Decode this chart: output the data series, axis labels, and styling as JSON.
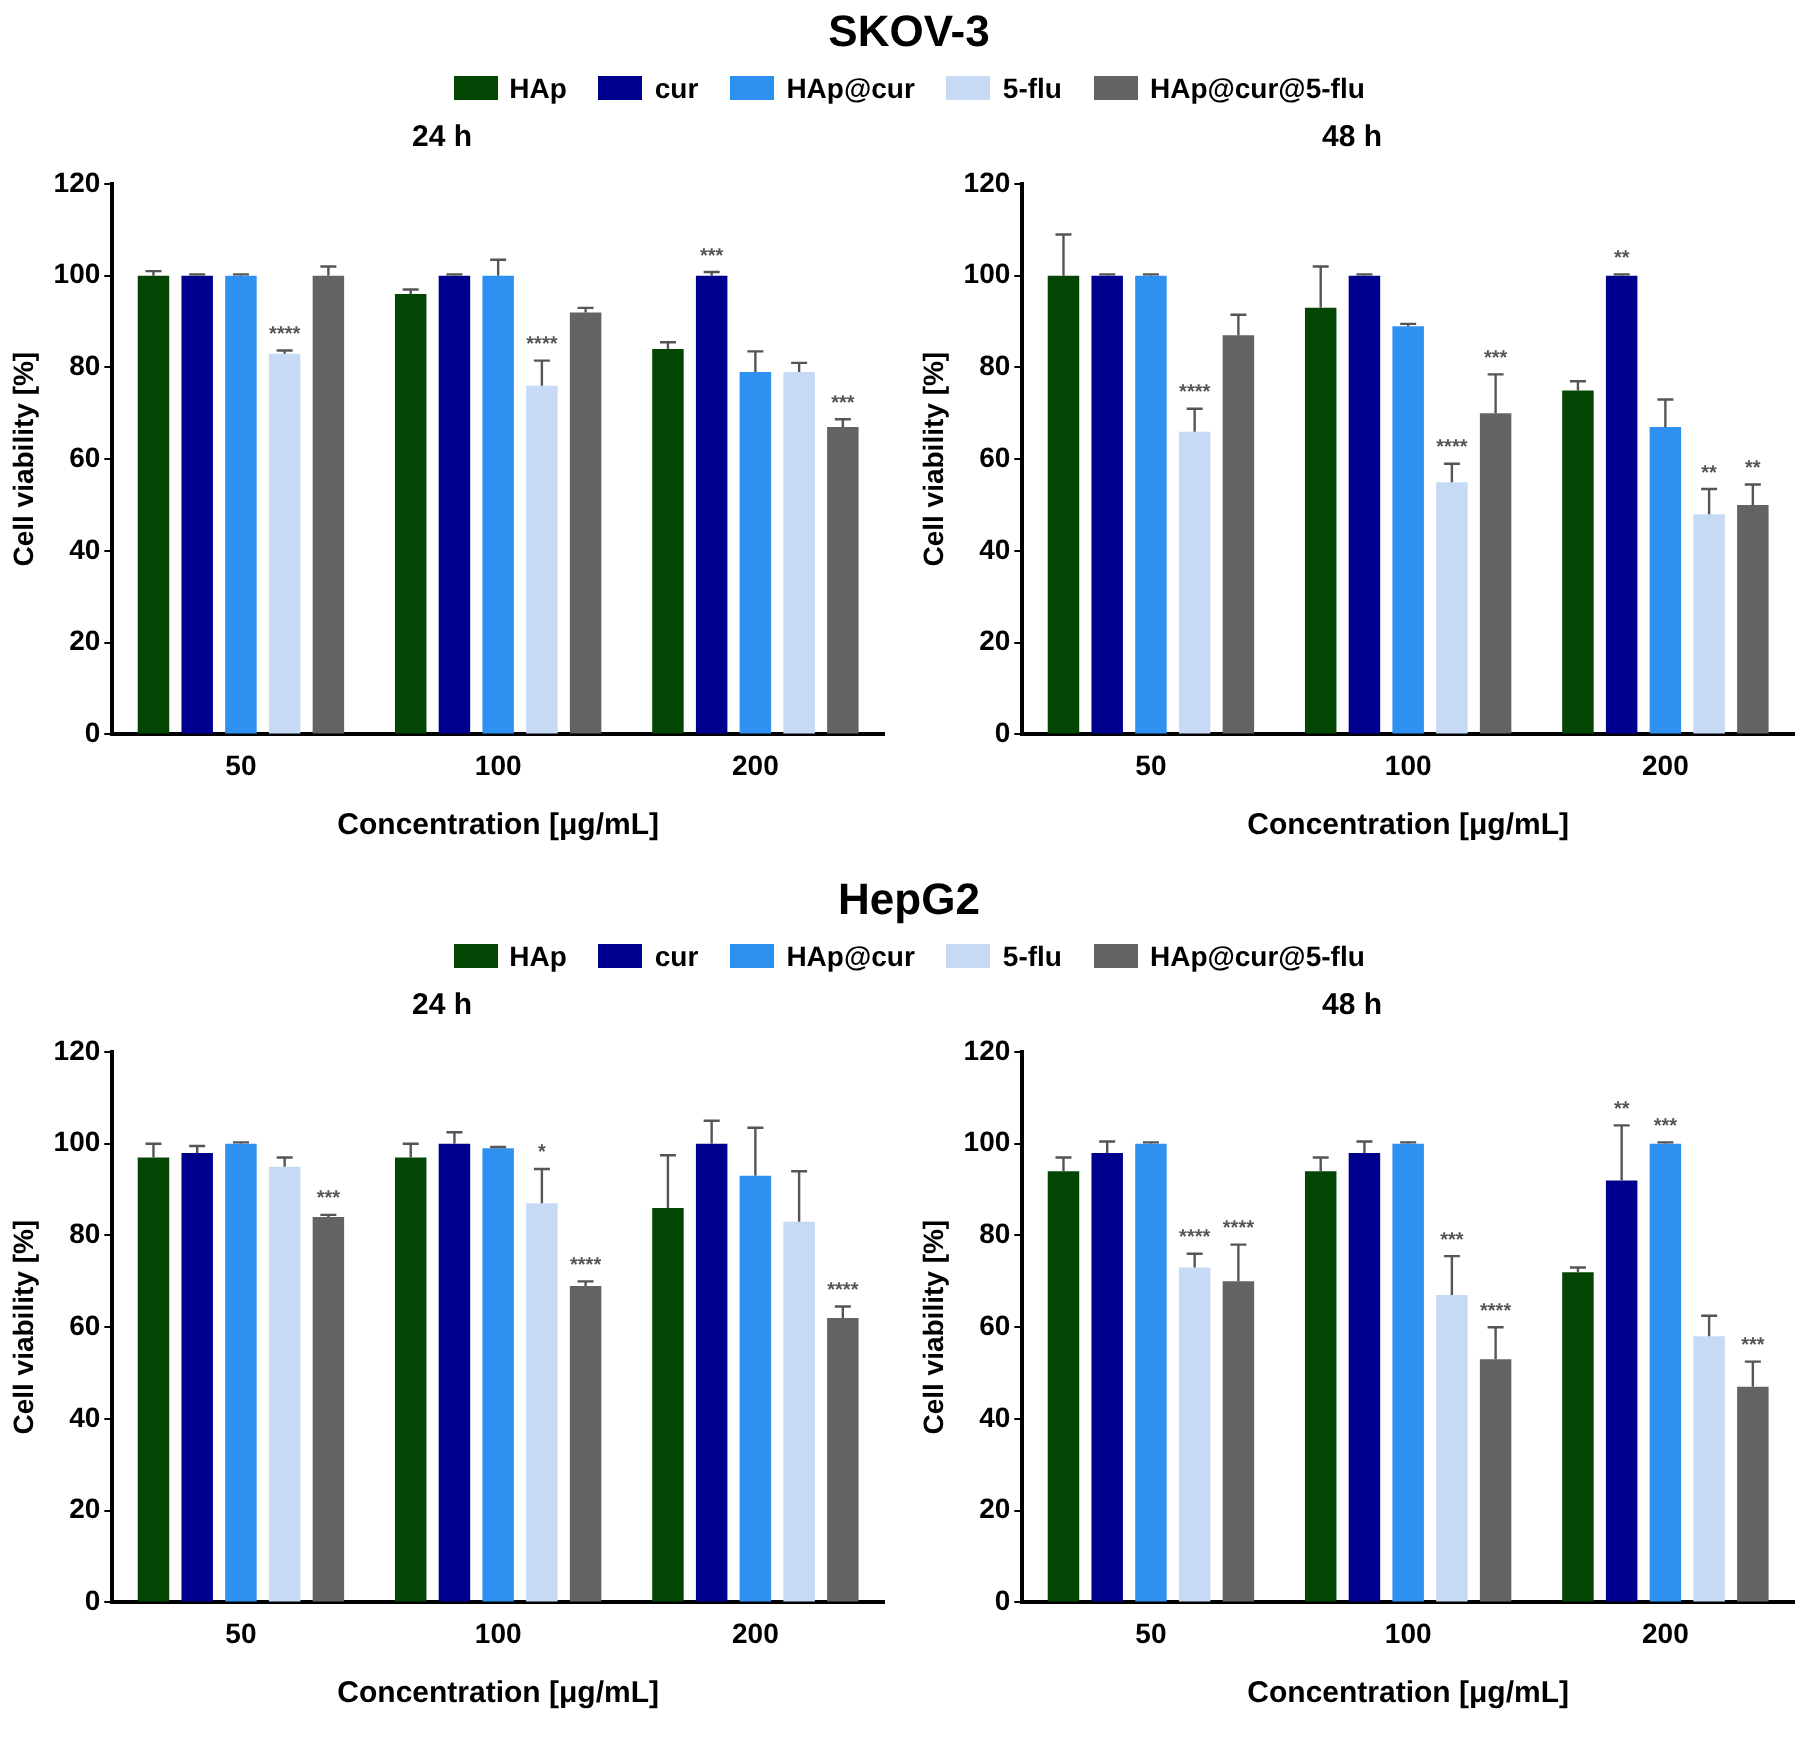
{
  "chart_data": [
    {
      "type": "bar",
      "title": "24 h",
      "annotations": [
        "SKOV-3"
      ],
      "legend": "top",
      "grid": false,
      "xlabel": "Concentration [μg/mL]",
      "ylabel": "Cell viability [%]",
      "categories": [
        "50",
        "100",
        "200"
      ],
      "ylim": [
        0,
        120
      ],
      "yticks": [
        0,
        20,
        40,
        60,
        80,
        100,
        120
      ],
      "series": [
        {
          "name": "HAp",
          "color": "#034503",
          "values": [
            100,
            96,
            84
          ],
          "errors": [
            [
              100,
              101
            ],
            [
              96,
              97
            ],
            [
              84,
              85.5
            ]
          ],
          "value_labels": [
            null,
            null,
            null
          ]
        },
        {
          "name": "cur",
          "color": "#00008f",
          "values": [
            100,
            100,
            100
          ],
          "errors": [
            [
              100,
              100.3
            ],
            [
              100,
              100.3
            ],
            [
              100,
              100.8
            ]
          ],
          "value_labels": [
            null,
            null,
            "***"
          ]
        },
        {
          "name": "HAp@cur",
          "color": "#2e90f0",
          "values": [
            100,
            100,
            79
          ],
          "errors": [
            [
              100,
              100.3
            ],
            [
              100,
              103.5
            ],
            [
              79,
              83.5
            ]
          ],
          "value_labels": [
            null,
            null,
            null
          ]
        },
        {
          "name": "5-flu",
          "color": "#c6daf6",
          "values": [
            83,
            76,
            79
          ],
          "errors": [
            [
              83,
              83.7
            ],
            [
              76,
              81.5
            ],
            [
              79,
              81
            ]
          ],
          "value_labels": [
            "****",
            "****",
            null
          ]
        },
        {
          "name": "HAp@cur@5-flu",
          "color": "#636363",
          "values": [
            100,
            92,
            67
          ],
          "errors": [
            [
              100,
              102
            ],
            [
              92,
              93
            ],
            [
              67,
              68.7
            ]
          ],
          "value_labels": [
            null,
            null,
            "***"
          ]
        }
      ]
    },
    {
      "type": "bar",
      "title": "48 h",
      "legend": false,
      "grid": false,
      "xlabel": "Concentration [μg/mL]",
      "ylabel": "Cell viability [%]",
      "categories": [
        "50",
        "100",
        "200"
      ],
      "ylim": [
        0,
        120
      ],
      "yticks": [
        0,
        20,
        40,
        60,
        80,
        100,
        120
      ],
      "series": [
        {
          "color": "#034503",
          "values": [
            100,
            93,
            75
          ],
          "errors": [
            [
              100,
              109
            ],
            [
              93,
              102
            ],
            [
              75,
              77
            ]
          ],
          "value_labels": [
            null,
            null,
            null
          ]
        },
        {
          "color": "#00008f",
          "values": [
            100,
            100,
            100
          ],
          "errors": [
            [
              100,
              100.3
            ],
            [
              100,
              100.3
            ],
            [
              100,
              100.3
            ]
          ],
          "value_labels": [
            null,
            null,
            "**"
          ]
        },
        {
          "color": "#2e90f0",
          "values": [
            100,
            89,
            67
          ],
          "errors": [
            [
              100,
              100.3
            ],
            [
              89,
              89.5
            ],
            [
              67,
              73
            ]
          ],
          "value_labels": [
            null,
            null,
            null
          ]
        },
        {
          "color": "#c6daf6",
          "values": [
            66,
            55,
            48
          ],
          "errors": [
            [
              66,
              71
            ],
            [
              55,
              59
            ],
            [
              48,
              53.5
            ]
          ],
          "value_labels": [
            "****",
            "****",
            "**"
          ]
        },
        {
          "color": "#636363",
          "values": [
            87,
            70,
            50
          ],
          "errors": [
            [
              87,
              91.5
            ],
            [
              70,
              78.5
            ],
            [
              50,
              54.5
            ]
          ],
          "value_labels": [
            null,
            "***",
            "**"
          ]
        }
      ]
    },
    {
      "type": "bar",
      "title": "24 h",
      "annotations": [
        "HepG2"
      ],
      "legend": "top",
      "grid": false,
      "xlabel": "Concentration [μg/mL]",
      "ylabel": "Cell viability [%]",
      "categories": [
        "50",
        "100",
        "200"
      ],
      "ylim": [
        0,
        120
      ],
      "yticks": [
        0,
        20,
        40,
        60,
        80,
        100,
        120
      ],
      "series": [
        {
          "name": "HAp",
          "color": "#034503",
          "values": [
            97,
            97,
            86
          ],
          "errors": [
            [
              97,
              100
            ],
            [
              97,
              100
            ],
            [
              86,
              97.5
            ]
          ],
          "value_labels": [
            null,
            null,
            null
          ]
        },
        {
          "name": "cur",
          "color": "#00008f",
          "values": [
            98,
            100,
            100
          ],
          "errors": [
            [
              98,
              99.5
            ],
            [
              100,
              102.5
            ],
            [
              100,
              105
            ]
          ],
          "value_labels": [
            null,
            null,
            null
          ]
        },
        {
          "name": "HAp@cur",
          "color": "#2e90f0",
          "values": [
            100,
            99,
            93
          ],
          "errors": [
            [
              100,
              100.3
            ],
            [
              99,
              99.3
            ],
            [
              93,
              103.5
            ]
          ],
          "value_labels": [
            null,
            null,
            null
          ]
        },
        {
          "name": "5-flu",
          "color": "#c6daf6",
          "values": [
            95,
            87,
            83
          ],
          "errors": [
            [
              95,
              97
            ],
            [
              87,
              94.5
            ],
            [
              83,
              94
            ]
          ],
          "value_labels": [
            null,
            "*",
            null
          ]
        },
        {
          "name": "HAp@cur@5-flu",
          "color": "#636363",
          "values": [
            84,
            69,
            62
          ],
          "errors": [
            [
              84,
              84.5
            ],
            [
              69,
              70
            ],
            [
              62,
              64.5
            ]
          ],
          "value_labels": [
            "***",
            "****",
            "****"
          ]
        }
      ]
    },
    {
      "type": "bar",
      "title": "48 h",
      "legend": false,
      "grid": false,
      "xlabel": "Concentration [μg/mL]",
      "ylabel": "Cell viability [%]",
      "categories": [
        "50",
        "100",
        "200"
      ],
      "ylim": [
        0,
        120
      ],
      "yticks": [
        0,
        20,
        40,
        60,
        80,
        100,
        120
      ],
      "series": [
        {
          "color": "#034503",
          "values": [
            94,
            94,
            72
          ],
          "errors": [
            [
              94,
              97
            ],
            [
              94,
              97
            ],
            [
              72,
              73
            ]
          ],
          "value_labels": [
            null,
            null,
            null
          ]
        },
        {
          "color": "#00008f",
          "values": [
            98,
            98,
            92
          ],
          "errors": [
            [
              98,
              100.5
            ],
            [
              98,
              100.5
            ],
            [
              92,
              104
            ]
          ],
          "value_labels": [
            null,
            null,
            "**"
          ]
        },
        {
          "color": "#2e90f0",
          "values": [
            100,
            100,
            100
          ],
          "errors": [
            [
              100,
              100.3
            ],
            [
              100,
              100.3
            ],
            [
              100,
              100.3
            ]
          ],
          "value_labels": [
            null,
            null,
            "***"
          ]
        },
        {
          "color": "#c6daf6",
          "values": [
            73,
            67,
            58
          ],
          "errors": [
            [
              73,
              76
            ],
            [
              67,
              75.5
            ],
            [
              58,
              62.5
            ]
          ],
          "value_labels": [
            "****",
            "***",
            null
          ]
        },
        {
          "color": "#636363",
          "values": [
            70,
            53,
            47
          ],
          "errors": [
            [
              70,
              78
            ],
            [
              53,
              60
            ],
            [
              47,
              52.5
            ]
          ],
          "value_labels": [
            "****",
            "****",
            "***"
          ]
        }
      ]
    }
  ]
}
